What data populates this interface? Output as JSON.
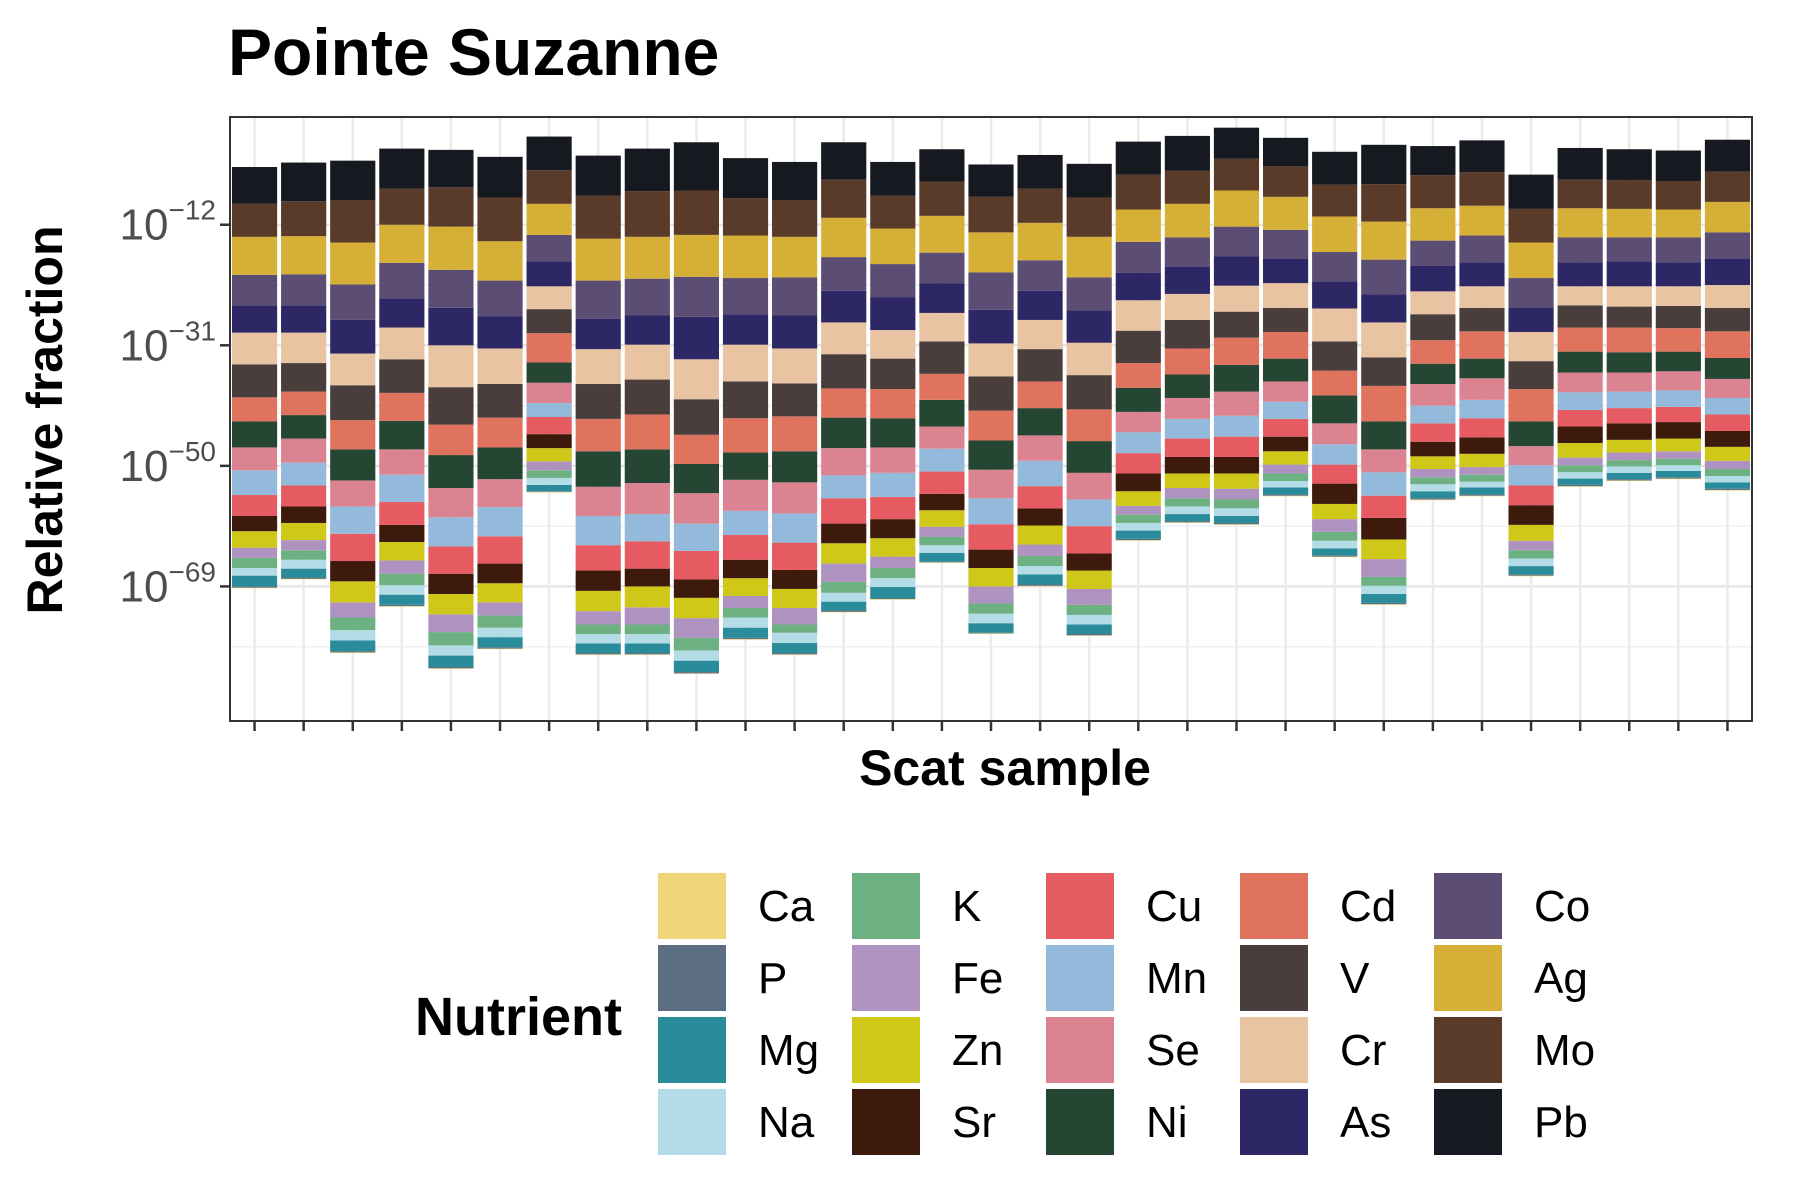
{
  "chart_data": {
    "type": "bar",
    "stacked": true,
    "title": "Pointe Suzanne",
    "xlabel": "Scat sample",
    "ylabel": "Relative fraction",
    "y_scale": "log10",
    "y_ticks": [
      {
        "value": -12,
        "base": "10",
        "exp": "−12"
      },
      {
        "value": -31,
        "base": "10",
        "exp": "−31"
      },
      {
        "value": -50,
        "base": "10",
        "exp": "−50"
      },
      {
        "value": -69,
        "base": "10",
        "exp": "−69"
      }
    ],
    "ylim_log10": [
      -88,
      0
    ],
    "grid": true,
    "x_ticks_labeled": false,
    "n_samples": 31,
    "legend": {
      "title": "Nutrient",
      "placement": "bottom",
      "columns": 6,
      "rows": 4
    },
    "nutrients_bottom_to_top": [
      "Ca",
      "P",
      "Mg",
      "Na",
      "K",
      "Fe",
      "Zn",
      "Sr",
      "Cu",
      "Mn",
      "Se",
      "Ni",
      "Cd",
      "V",
      "Cr",
      "As",
      "Co",
      "Ag",
      "Mo",
      "Pb"
    ],
    "colors": {
      "Ca": "#EFD67A",
      "P": "#5B6F80",
      "Mg": "#2A8C9A",
      "Na": "#B4DCE6",
      "K": "#6DB182",
      "Fe": "#AE92BF",
      "Zn": "#CFC818",
      "Sr": "#3D1A0C",
      "Cu": "#E65B62",
      "Mn": "#93BADB",
      "Se": "#DC8392",
      "Ni": "#254632",
      "Cd": "#E0735E",
      "V": "#4A3E3C",
      "Cr": "#E9C4A2",
      "As": "#2E2765",
      "Co": "#5B4D74",
      "Ag": "#D6AF37",
      "Mo": "#5A3A29",
      "Pb": "#16191F"
    },
    "samples": [
      {
        "bottom_log10": -69.3,
        "segments_log10": [
          0.1,
          0.2,
          1.7,
          1.2,
          1.6,
          1.6,
          2.6,
          2.4,
          3.3,
          3.9,
          3.6,
          4.1,
          3.8,
          5.2,
          5.0,
          4.3,
          4.8,
          6.0,
          5.2,
          5.8
        ]
      },
      {
        "bottom_log10": -67.9,
        "segments_log10": [
          0.1,
          0.2,
          1.4,
          1.4,
          1.5,
          1.6,
          2.7,
          2.6,
          3.3,
          3.6,
          3.8,
          3.7,
          3.7,
          4.5,
          4.8,
          4.3,
          4.9,
          6.0,
          5.5,
          6.1
        ]
      },
      {
        "bottom_log10": -79.5,
        "segments_log10": [
          0.1,
          0.2,
          1.7,
          1.6,
          2.0,
          2.4,
          3.3,
          3.2,
          4.3,
          4.3,
          4.1,
          4.9,
          4.6,
          5.5,
          5.0,
          5.3,
          5.6,
          6.6,
          6.7,
          6.2
        ]
      },
      {
        "bottom_log10": -72.2,
        "segments_log10": [
          0.1,
          0.2,
          1.6,
          1.5,
          1.8,
          2.1,
          2.9,
          2.7,
          3.6,
          4.3,
          4.0,
          4.5,
          4.4,
          5.3,
          5.0,
          4.6,
          5.6,
          6.0,
          5.7,
          6.3
        ]
      },
      {
        "bottom_log10": -82.0,
        "segments_log10": [
          0.1,
          0.2,
          1.8,
          1.6,
          2.1,
          2.8,
          3.2,
          3.2,
          4.3,
          4.6,
          4.6,
          5.2,
          4.8,
          5.9,
          6.6,
          5.9,
          6.0,
          6.8,
          6.2,
          5.9
        ]
      },
      {
        "bottom_log10": -78.9,
        "segments_log10": [
          0.1,
          0.2,
          1.6,
          1.5,
          1.9,
          2.1,
          3.0,
          3.1,
          4.3,
          4.6,
          4.4,
          5.0,
          4.7,
          5.3,
          5.6,
          5.1,
          5.6,
          6.2,
          6.9,
          6.4
        ]
      },
      {
        "bottom_log10": -54.2,
        "segments_log10": [
          0.1,
          0.1,
          1.0,
          1.1,
          1.2,
          1.4,
          2.1,
          2.2,
          2.7,
          2.2,
          3.2,
          3.2,
          4.6,
          3.8,
          3.6,
          3.9,
          4.2,
          4.9,
          5.3,
          5.3
        ]
      },
      {
        "bottom_log10": -79.8,
        "segments_log10": [
          0.1,
          0.2,
          1.5,
          1.5,
          1.5,
          2.1,
          3.2,
          3.2,
          4.0,
          4.6,
          4.6,
          5.6,
          5.1,
          5.5,
          5.5,
          4.8,
          6.0,
          6.6,
          6.8,
          6.3
        ]
      },
      {
        "bottom_log10": -79.8,
        "segments_log10": [
          0.1,
          0.2,
          1.5,
          1.5,
          1.5,
          2.7,
          3.3,
          2.8,
          4.3,
          4.3,
          4.9,
          5.3,
          5.5,
          5.5,
          5.5,
          4.6,
          5.8,
          6.6,
          7.2,
          6.7
        ]
      },
      {
        "bottom_log10": -82.8,
        "segments_log10": [
          0.1,
          0.2,
          1.8,
          1.6,
          2.0,
          3.1,
          3.2,
          2.9,
          4.5,
          4.3,
          4.8,
          4.6,
          4.6,
          5.6,
          6.3,
          6.7,
          6.3,
          6.6,
          7.0,
          7.6
        ]
      },
      {
        "bottom_log10": -77.4,
        "segments_log10": [
          0.1,
          0.2,
          1.6,
          1.6,
          1.5,
          1.9,
          2.8,
          2.9,
          3.9,
          3.8,
          4.9,
          4.3,
          5.4,
          5.8,
          5.8,
          4.8,
          5.7,
          6.7,
          5.9,
          6.3
        ]
      },
      {
        "bottom_log10": -79.8,
        "segments_log10": [
          0.1,
          0.2,
          1.6,
          1.6,
          1.3,
          2.6,
          3.0,
          3.0,
          4.3,
          4.6,
          4.9,
          4.9,
          5.5,
          5.2,
          5.5,
          5.2,
          6.0,
          6.4,
          5.8,
          6.0
        ]
      },
      {
        "bottom_log10": -73.1,
        "segments_log10": [
          0.1,
          0.2,
          1.4,
          1.4,
          1.7,
          2.9,
          3.2,
          3.1,
          4.0,
          3.6,
          4.3,
          4.8,
          4.6,
          5.4,
          5.0,
          5.0,
          5.3,
          6.2,
          6.0,
          5.9
        ]
      },
      {
        "bottom_log10": -71.1,
        "segments_log10": [
          0.1,
          0.1,
          1.8,
          1.4,
          1.6,
          1.8,
          2.9,
          3.0,
          3.5,
          3.8,
          4.0,
          4.6,
          4.6,
          4.8,
          4.5,
          5.2,
          5.2,
          5.6,
          5.2,
          5.3
        ]
      },
      {
        "bottom_log10": -65.3,
        "segments_log10": [
          0.1,
          0.1,
          1.4,
          1.2,
          1.3,
          1.6,
          2.6,
          2.6,
          3.5,
          3.6,
          3.5,
          4.2,
          4.1,
          5.1,
          4.5,
          4.7,
          4.8,
          5.8,
          5.4,
          5.1
        ]
      },
      {
        "bottom_log10": -76.5,
        "segments_log10": [
          0.1,
          0.1,
          1.5,
          1.5,
          1.6,
          2.7,
          2.9,
          2.9,
          4.0,
          4.1,
          4.5,
          4.6,
          4.7,
          5.4,
          5.2,
          5.3,
          5.9,
          6.3,
          5.6,
          5.1
        ]
      },
      {
        "bottom_log10": -69.0,
        "segments_log10": [
          0.1,
          0.2,
          1.6,
          1.3,
          1.6,
          1.8,
          3.0,
          2.7,
          3.5,
          4.0,
          4.0,
          4.3,
          4.2,
          5.1,
          4.6,
          4.6,
          4.8,
          5.9,
          5.4,
          5.3
        ]
      },
      {
        "bottom_log10": -76.8,
        "segments_log10": [
          0.1,
          0.2,
          1.5,
          1.5,
          1.6,
          2.5,
          2.9,
          2.7,
          4.3,
          4.2,
          4.2,
          5.0,
          5.0,
          5.4,
          5.1,
          5.1,
          5.2,
          6.4,
          6.2,
          5.3
        ]
      },
      {
        "bottom_log10": -61.8,
        "segments_log10": [
          0.1,
          0.2,
          1.3,
          1.2,
          1.3,
          1.4,
          2.3,
          2.8,
          3.2,
          3.3,
          3.2,
          3.8,
          3.9,
          5.1,
          4.8,
          4.3,
          4.9,
          5.1,
          5.5,
          5.2
        ]
      },
      {
        "bottom_log10": -59.0,
        "segments_log10": [
          0.1,
          0.2,
          1.1,
          1.2,
          1.3,
          1.6,
          2.3,
          2.6,
          2.9,
          3.1,
          3.3,
          3.7,
          4.1,
          4.5,
          4.1,
          4.3,
          4.6,
          5.3,
          5.2,
          5.5
        ]
      },
      {
        "bottom_log10": -59.3,
        "segments_log10": [
          0.1,
          0.2,
          1.1,
          1.2,
          1.4,
          1.7,
          2.4,
          2.6,
          3.2,
          3.3,
          3.8,
          4.2,
          4.3,
          4.1,
          4.1,
          4.6,
          4.7,
          5.7,
          5.0,
          4.9
        ]
      },
      {
        "bottom_log10": -54.8,
        "segments_log10": [
          0.1,
          0.2,
          1.1,
          1.0,
          1.2,
          1.4,
          2.1,
          2.3,
          2.8,
          2.7,
          3.2,
          3.6,
          4.2,
          3.8,
          3.9,
          3.8,
          4.6,
          5.2,
          4.8,
          4.5
        ]
      },
      {
        "bottom_log10": -64.4,
        "segments_log10": [
          0.1,
          0.2,
          1.1,
          1.2,
          1.4,
          2.0,
          2.4,
          3.2,
          3.0,
          3.2,
          3.3,
          4.4,
          3.9,
          4.6,
          5.2,
          4.3,
          4.6,
          5.6,
          5.0,
          5.2
        ]
      },
      {
        "bottom_log10": -71.9,
        "segments_log10": [
          0.1,
          0.2,
          1.4,
          1.3,
          1.4,
          2.8,
          3.1,
          3.4,
          3.5,
          3.7,
          3.6,
          4.4,
          5.6,
          4.5,
          5.5,
          4.4,
          5.5,
          6.0,
          5.9,
          6.2
        ]
      },
      {
        "bottom_log10": -55.4,
        "segments_log10": [
          0.1,
          0.2,
          1.1,
          1.1,
          1.1,
          1.3,
          2.0,
          2.3,
          2.9,
          2.8,
          3.4,
          3.2,
          3.7,
          4.1,
          3.6,
          4.0,
          4.0,
          5.1,
          5.2,
          4.6
        ]
      },
      {
        "bottom_log10": -54.8,
        "segments_log10": [
          0.1,
          0.2,
          1.1,
          0.9,
          1.1,
          1.2,
          2.1,
          2.6,
          3.0,
          2.9,
          3.4,
          3.1,
          4.3,
          3.7,
          3.4,
          3.8,
          4.2,
          4.7,
          5.3,
          5.0
        ]
      },
      {
        "bottom_log10": -67.4,
        "segments_log10": [
          0.1,
          0.2,
          1.3,
          1.2,
          1.3,
          1.5,
          2.5,
          3.1,
          3.1,
          3.2,
          3.0,
          3.9,
          5.1,
          4.4,
          4.6,
          3.9,
          4.6,
          5.6,
          5.3,
          5.4
        ]
      },
      {
        "bottom_log10": -53.3,
        "segments_log10": [
          0.1,
          0.2,
          1.0,
          1.0,
          1.1,
          1.2,
          2.3,
          2.6,
          2.6,
          2.8,
          3.1,
          3.3,
          3.8,
          3.5,
          3.0,
          3.8,
          3.9,
          4.6,
          4.5,
          5.0
        ]
      },
      {
        "bottom_log10": -52.4,
        "segments_log10": [
          0.1,
          0.2,
          1.0,
          1.0,
          1.0,
          1.2,
          2.0,
          2.6,
          2.4,
          2.6,
          3.0,
          3.2,
          3.9,
          3.3,
          3.2,
          3.9,
          3.8,
          4.5,
          4.5,
          4.9
        ]
      },
      {
        "bottom_log10": -52.1,
        "segments_log10": [
          0.1,
          0.2,
          1.0,
          0.9,
          1.0,
          1.2,
          2.0,
          2.6,
          2.4,
          2.6,
          3.0,
          3.1,
          3.7,
          3.5,
          3.1,
          3.8,
          3.9,
          4.4,
          4.5,
          4.8
        ]
      },
      {
        "bottom_log10": -53.9,
        "segments_log10": [
          0.1,
          0.2,
          1.0,
          1.0,
          1.1,
          1.3,
          2.2,
          2.5,
          2.6,
          2.6,
          3.0,
          3.3,
          4.2,
          3.7,
          3.6,
          4.1,
          4.2,
          4.8,
          4.8,
          5.0
        ]
      }
    ]
  }
}
